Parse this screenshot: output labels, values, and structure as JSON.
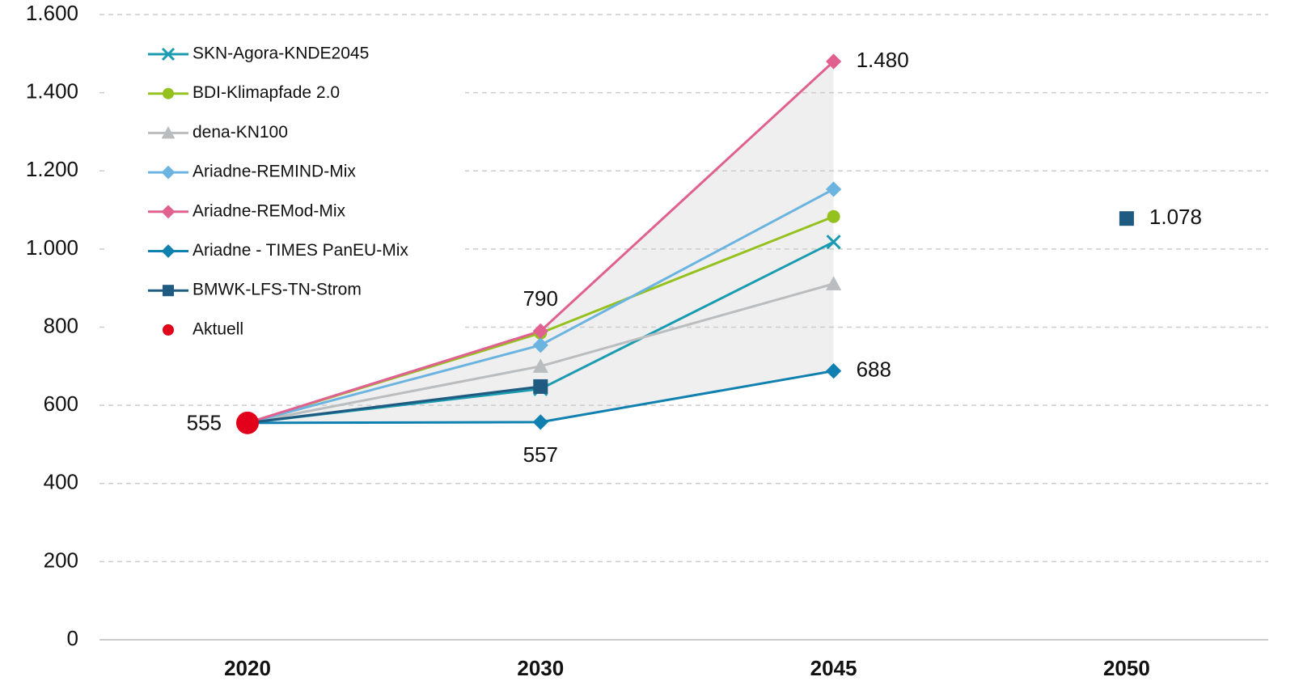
{
  "chart_data": {
    "type": "line",
    "categories": [
      "2020",
      "2030",
      "2045",
      "2050"
    ],
    "ylim": [
      0,
      1600
    ],
    "yticks": [
      0,
      200,
      400,
      600,
      800,
      {
        "value": 1000,
        "label": "1.000"
      },
      {
        "value": 1200,
        "label": "1.200"
      },
      {
        "value": 1400,
        "label": "1.400"
      },
      {
        "value": 1600,
        "label": "1.600"
      }
    ],
    "grid": true,
    "legend": "top-left",
    "series": [
      {
        "name": "SKN-Agora-KNDE2045",
        "color": "#1a9bb0",
        "marker": "x",
        "values": [
          555,
          642,
          1018,
          null
        ]
      },
      {
        "name": "BDI-Klimapfade 2.0",
        "color": "#95c11f",
        "marker": "circle",
        "values": [
          555,
          785,
          1083,
          null
        ]
      },
      {
        "name": "dena-KN100",
        "color": "#b9bdbf",
        "marker": "triangle",
        "values": [
          555,
          700,
          911,
          null
        ]
      },
      {
        "name": "Ariadne-REMIND-Mix",
        "color": "#6cb4e0",
        "marker": "diamond",
        "values": [
          555,
          754,
          1153,
          null
        ]
      },
      {
        "name": "Ariadne-REMod-Mix",
        "color": "#e0608f",
        "marker": "diamond",
        "values": [
          555,
          790,
          1480,
          null
        ],
        "value_labels": [
          null,
          "790",
          "1.480",
          null
        ]
      },
      {
        "name": "Ariadne - TIMES PanEU-Mix",
        "color": "#1080b0",
        "marker": "diamond",
        "values": [
          555,
          557,
          688,
          null
        ],
        "value_labels": [
          null,
          "557",
          "688",
          null
        ]
      },
      {
        "name": "BMWK-LFS-TN-Strom",
        "color": "#1f5a80",
        "marker": "square",
        "values": [
          555,
          648,
          null,
          1078
        ],
        "value_labels": [
          null,
          null,
          null,
          "1.078"
        ]
      },
      {
        "name": "Aktuell",
        "color": "#e2001a",
        "marker": "circle",
        "line": false,
        "values": [
          555,
          null,
          null,
          null
        ],
        "value_labels": [
          "555",
          null,
          null,
          null
        ]
      }
    ]
  }
}
